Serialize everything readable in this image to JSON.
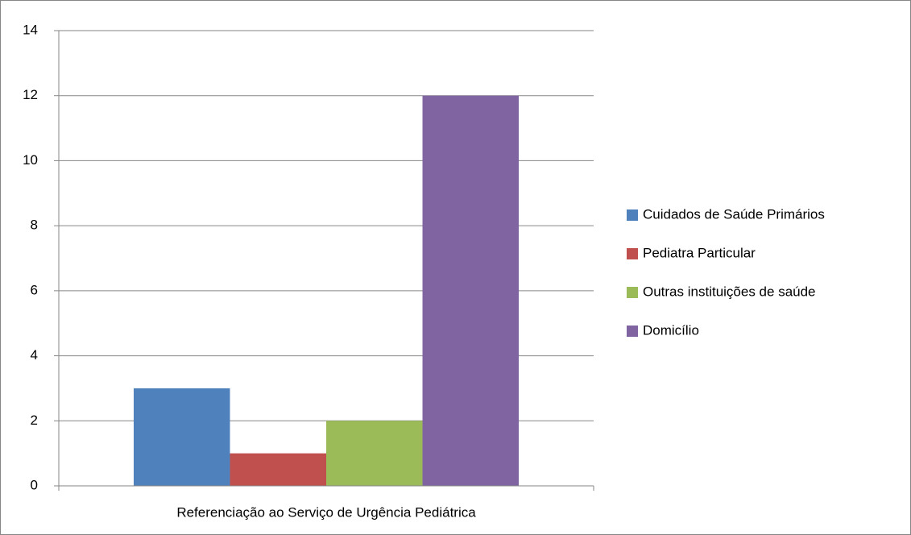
{
  "chart_data": {
    "type": "bar",
    "categories": [
      "Referenciação ao Serviço de Urgência Pediátrica"
    ],
    "series": [
      {
        "name": "Cuidados de Saúde Primários",
        "color": "#4f81bd",
        "values": [
          3
        ]
      },
      {
        "name": "Pediatra Particular",
        "color": "#c0504d",
        "values": [
          1
        ]
      },
      {
        "name": "Outras instituições de saúde",
        "color": "#9bbb59",
        "values": [
          2
        ]
      },
      {
        "name": "Domicílio",
        "color": "#8064a2",
        "values": [
          12
        ]
      }
    ],
    "ylim": [
      0,
      14
    ],
    "yticks": [
      0,
      2,
      4,
      6,
      8,
      10,
      12,
      14
    ],
    "grid": true,
    "legend": "right"
  }
}
